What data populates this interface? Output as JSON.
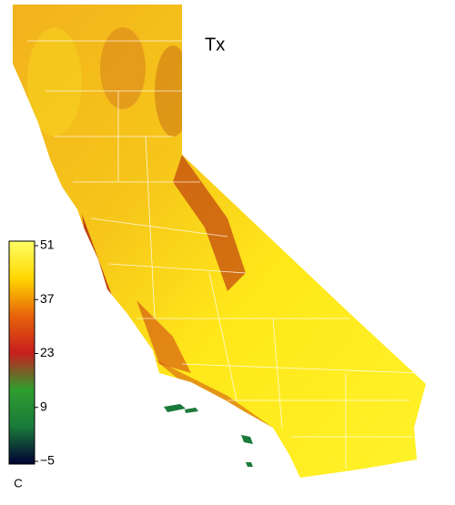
{
  "title": "Tx",
  "colorbar": {
    "unit": "C",
    "range": [
      -5,
      51
    ],
    "ticks": [
      51,
      37,
      23,
      9,
      {
        "value": -5,
        "label": "−5"
      }
    ],
    "colors": [
      "#000033",
      "#1a7a3a",
      "#2e9e2e",
      "#c81e1e",
      "#e8640a",
      "#ffd700",
      "#ffff66"
    ]
  }
}
